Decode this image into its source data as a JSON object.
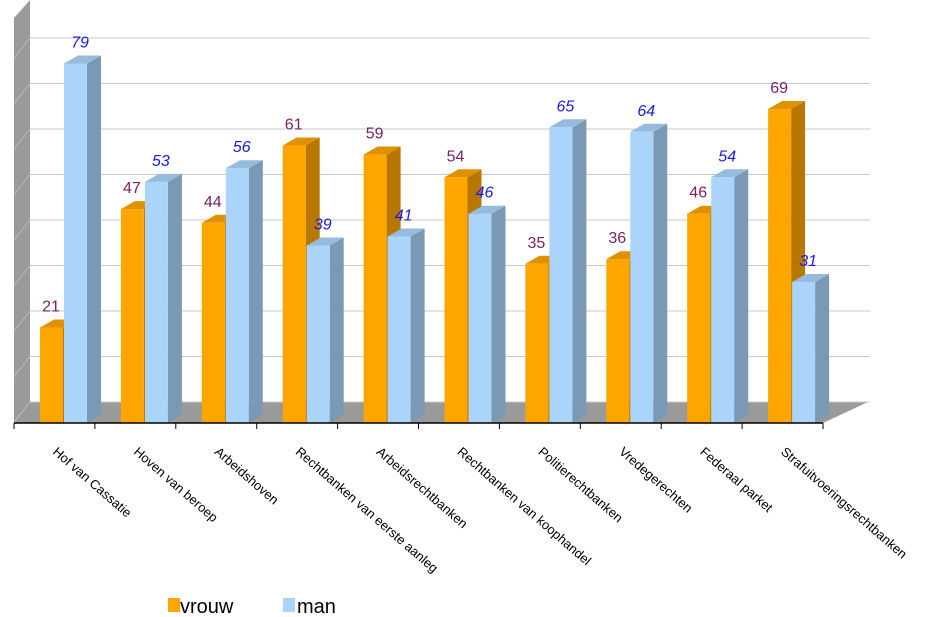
{
  "chart_data": {
    "type": "bar",
    "categories": [
      "Hof van Cassatie",
      "Hoven van beroep",
      "Arbeidshoven",
      "Rechtbanken van eerste aanleg",
      "Arbeidsrechtbanken",
      "Rechtbanken van koophandel",
      "Politierechtbanken",
      "Vredegerechten",
      "Federaal parket",
      "Strafuitvoeringsrechtbanken"
    ],
    "series": [
      {
        "name": "vrouw",
        "values": [
          21,
          47,
          44,
          61,
          59,
          54,
          35,
          36,
          46,
          69
        ]
      },
      {
        "name": "man",
        "values": [
          79,
          53,
          56,
          39,
          41,
          46,
          65,
          64,
          54,
          31
        ]
      }
    ],
    "ylim": [
      0,
      80
    ],
    "grid": true,
    "legend": "bottom-left",
    "colors": {
      "vrouw": "#ffa500",
      "man": "#aad4fa"
    }
  }
}
